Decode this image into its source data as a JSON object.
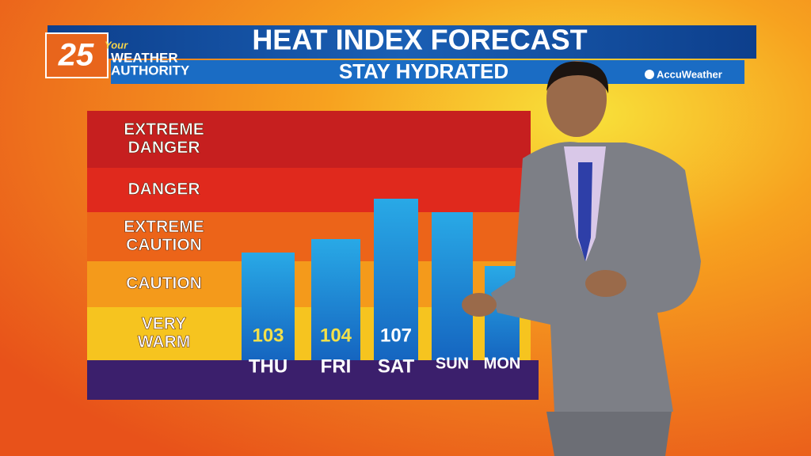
{
  "header": {
    "logo_number": "25",
    "logo_your": "Your",
    "logo_line1": "WEATHER",
    "logo_line2": "AUTHORITY",
    "brand": "AccuWeather"
  },
  "chart_data": {
    "type": "bar",
    "title": "HEAT INDEX FORECAST",
    "subtitle": "STAY HYDRATED",
    "categories": [
      "THU",
      "FRI",
      "SAT",
      "SUN",
      "MON"
    ],
    "values": [
      103,
      104,
      107,
      106,
      102
    ],
    "value_labels": [
      "103",
      "104",
      "107",
      null,
      null
    ],
    "color": "#1f8fd6",
    "ylim": [
      95,
      110
    ],
    "bands": [
      {
        "lines": [
          "EXTREME",
          "DANGER"
        ],
        "color": "#c61f1f"
      },
      {
        "lines": [
          "DANGER"
        ],
        "color": "#e0291d"
      },
      {
        "lines": [
          "EXTREME",
          "CAUTION"
        ],
        "color": "#ec6419"
      },
      {
        "lines": [
          "CAUTION"
        ],
        "color": "#f49a1b"
      },
      {
        "lines": [
          "VERY",
          "WARM"
        ],
        "color": "#f6c41f"
      }
    ]
  }
}
